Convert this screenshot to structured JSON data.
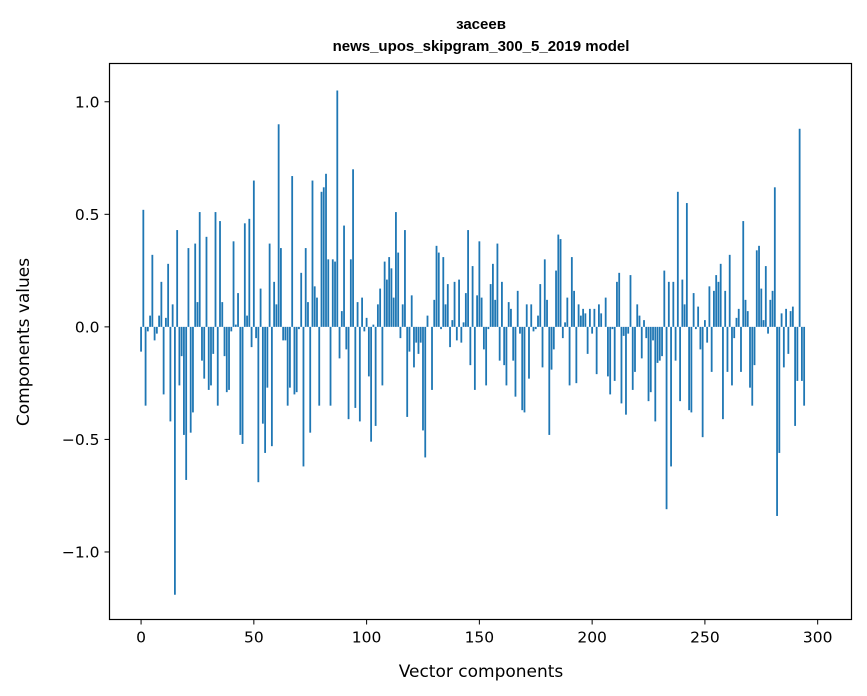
{
  "chart_data": {
    "type": "bar",
    "title": "засеев",
    "subtitle": "news_upos_skipgram_300_5_2019 model",
    "xlabel": "Vector components",
    "ylabel": "Components values",
    "xlim": [
      -14,
      315
    ],
    "ylim": [
      -1.3,
      1.17
    ],
    "xticks": [
      0,
      50,
      100,
      150,
      200,
      250,
      300
    ],
    "xtick_labels": [
      "0",
      "50",
      "100",
      "150",
      "200",
      "250",
      "300"
    ],
    "yticks": [
      -1.0,
      -0.5,
      0.0,
      0.5,
      1.0
    ],
    "ytick_labels": [
      "−1.0",
      "−0.5",
      "0.0",
      "0.5",
      "1.0"
    ],
    "color": "#1f77b4",
    "values": [
      -0.11,
      0.52,
      -0.35,
      -0.02,
      0.05,
      0.32,
      -0.06,
      -0.03,
      0.05,
      0.2,
      -0.3,
      0.04,
      0.28,
      -0.42,
      0.1,
      -1.19,
      0.43,
      -0.26,
      -0.13,
      -0.48,
      -0.68,
      0.35,
      -0.47,
      -0.38,
      0.37,
      0.11,
      0.51,
      -0.15,
      -0.23,
      0.4,
      -0.28,
      -0.26,
      -0.12,
      0.51,
      -0.35,
      0.47,
      0.11,
      -0.13,
      -0.29,
      -0.28,
      -0.02,
      0.38,
      0.01,
      0.15,
      -0.48,
      -0.52,
      0.46,
      0.05,
      0.48,
      -0.09,
      0.65,
      -0.05,
      -0.69,
      0.17,
      -0.43,
      -0.56,
      -0.27,
      0.37,
      -0.53,
      0.2,
      0.1,
      0.9,
      0.35,
      -0.06,
      -0.06,
      -0.35,
      -0.27,
      0.67,
      -0.3,
      -0.29,
      -0.01,
      0.24,
      -0.62,
      0.35,
      0.11,
      -0.47,
      0.65,
      0.18,
      0.13,
      -0.35,
      0.6,
      0.62,
      0.68,
      0.3,
      -0.35,
      0.3,
      0.29,
      1.05,
      -0.14,
      0.07,
      0.45,
      -0.1,
      -0.41,
      0.3,
      0.7,
      -0.36,
      0.11,
      -0.42,
      0.13,
      -0.02,
      0.04,
      -0.22,
      -0.51,
      0.01,
      -0.44,
      0.1,
      0.17,
      -0.26,
      0.29,
      0.21,
      0.31,
      0.26,
      0.13,
      0.51,
      0.33,
      -0.05,
      0.1,
      0.43,
      -0.4,
      -0.11,
      0.14,
      -0.18,
      -0.07,
      -0.12,
      -0.07,
      -0.46,
      -0.58,
      0.05,
      0.0,
      -0.28,
      0.12,
      0.36,
      0.33,
      -0.01,
      0.31,
      0.1,
      0.19,
      -0.09,
      0.03,
      0.2,
      -0.06,
      0.21,
      -0.07,
      0.02,
      0.15,
      0.43,
      -0.17,
      0.27,
      -0.28,
      0.14,
      0.38,
      0.13,
      -0.1,
      -0.26,
      -0.01,
      0.19,
      0.28,
      0.12,
      0.37,
      -0.15,
      0.2,
      -0.17,
      -0.26,
      0.11,
      0.08,
      -0.15,
      -0.31,
      0.16,
      -0.03,
      -0.37,
      -0.38,
      0.1,
      -0.23,
      0.1,
      -0.02,
      -0.01,
      0.05,
      0.19,
      -0.18,
      0.3,
      0.12,
      -0.48,
      -0.19,
      -0.1,
      0.25,
      0.41,
      0.39,
      -0.05,
      0.02,
      0.13,
      -0.26,
      0.31,
      0.16,
      -0.25,
      0.1,
      0.05,
      0.08,
      0.06,
      -0.12,
      0.08,
      -0.03,
      0.08,
      -0.21,
      0.1,
      0.06,
      0.0,
      0.13,
      -0.22,
      -0.3,
      -0.01,
      -0.24,
      0.2,
      0.24,
      -0.34,
      -0.04,
      -0.39,
      -0.03,
      0.23,
      -0.28,
      -0.2,
      0.1,
      0.05,
      -0.14,
      0.03,
      -0.05,
      -0.33,
      -0.29,
      -0.06,
      -0.42,
      -0.16,
      -0.15,
      -0.13,
      0.25,
      -0.81,
      0.2,
      -0.62,
      0.2,
      -0.15,
      0.6,
      -0.33,
      0.21,
      0.1,
      0.55,
      -0.37,
      -0.38,
      0.15,
      -0.01,
      0.09,
      -0.1,
      -0.49,
      0.03,
      -0.07,
      0.18,
      -0.2,
      0.16,
      0.23,
      0.2,
      0.28,
      -0.41,
      0.16,
      -0.2,
      0.32,
      -0.26,
      -0.05,
      0.04,
      0.08,
      -0.2,
      0.47,
      0.12,
      0.07,
      -0.27,
      -0.35,
      -0.17,
      0.34,
      0.36,
      0.17,
      0.03,
      0.27,
      -0.03,
      0.12,
      0.16,
      0.62,
      -0.84,
      -0.56,
      0.06,
      -0.18,
      0.08,
      -0.12,
      0.07,
      0.09,
      -0.44,
      -0.24,
      0.88,
      -0.24,
      -0.35
    ]
  }
}
